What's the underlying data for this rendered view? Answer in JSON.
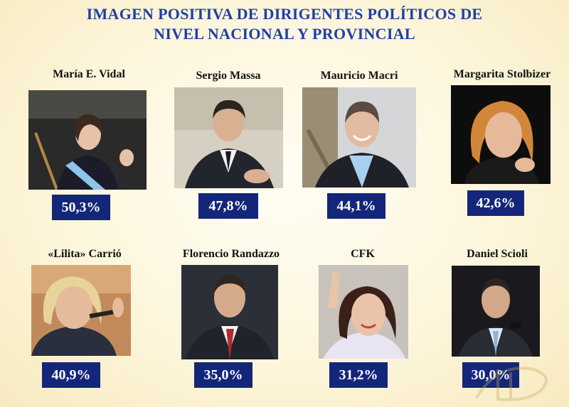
{
  "title": {
    "line1": "IMAGEN POSITIVA DE DIRIGENTES POLÍTICOS DE",
    "line2": "NIVEL NACIONAL Y PROVINCIAL"
  },
  "politicians": [
    {
      "name": "María E. Vidal",
      "percent": "50,3%",
      "value": 50.3
    },
    {
      "name": "Sergio Massa",
      "percent": "47,8%",
      "value": 47.8
    },
    {
      "name": "Mauricio Macri",
      "percent": "44,1%",
      "value": 44.1
    },
    {
      "name": "Margarita Stolbizer",
      "percent": "42,6%",
      "value": 42.6
    },
    {
      "name": "«Lilita» Carrió",
      "percent": "40,9%",
      "value": 40.9
    },
    {
      "name": "Florencio Randazzo",
      "percent": "35,0%",
      "value": 35.0
    },
    {
      "name": "CFK",
      "percent": "31,2%",
      "value": 31.2
    },
    {
      "name": "Daniel Scioli",
      "percent": "30,0%",
      "value": 30.0
    }
  ],
  "colors": {
    "title": "#1f3fa6",
    "badge": "#14267a",
    "background": "#fdf6dc"
  }
}
